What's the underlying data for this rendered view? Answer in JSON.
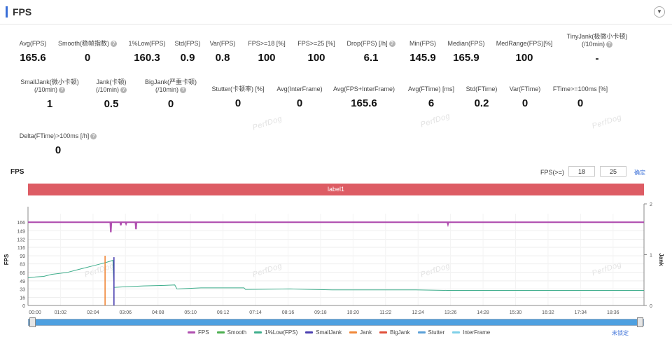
{
  "header": {
    "title": "FPS",
    "collapse_icon": "chevron-down-icon"
  },
  "metrics_row1": [
    {
      "id": "avg-fps",
      "label": "Avg(FPS)",
      "value": "165.6",
      "help": false
    },
    {
      "id": "smooth",
      "label": "Smooth(稳帧指数)",
      "value": "0",
      "help": true
    },
    {
      "id": "low1-fps",
      "label": "1%Low(FPS)",
      "value": "160.3",
      "help": false
    },
    {
      "id": "std-fps",
      "label": "Std(FPS)",
      "value": "0.9",
      "help": false
    },
    {
      "id": "var-fps",
      "label": "Var(FPS)",
      "value": "0.8",
      "help": false
    },
    {
      "id": "fps-ge-18",
      "label": "FPS>=18 [%]",
      "value": "100",
      "help": false
    },
    {
      "id": "fps-ge-25",
      "label": "FPS>=25 [%]",
      "value": "100",
      "help": false
    },
    {
      "id": "drop-fps",
      "label": "Drop(FPS) [/h]",
      "value": "6.1",
      "help": true
    },
    {
      "id": "min-fps",
      "label": "Min(FPS)",
      "value": "145.9",
      "help": false
    },
    {
      "id": "median-fps",
      "label": "Median(FPS)",
      "value": "165.9",
      "help": false
    },
    {
      "id": "medrange-fps",
      "label": "MedRange(FPS)[%]",
      "value": "100",
      "help": false
    },
    {
      "id": "tinyjank",
      "label": "TinyJank(极微小卡顿)",
      "label2": "(/10min)",
      "value": "-",
      "help": true
    }
  ],
  "metrics_row2": [
    {
      "id": "smalljank",
      "label": "SmallJank(微小卡顿)",
      "label2": "(/10min)",
      "value": "1",
      "help": true
    },
    {
      "id": "jank",
      "label": "Jank(卡顿)",
      "label2": "(/10min)",
      "value": "0.5",
      "help": true
    },
    {
      "id": "bigjank",
      "label": "BigJank(严重卡顿)",
      "label2": "(/10min)",
      "value": "0",
      "help": true
    },
    {
      "id": "stutter",
      "label": "Stutter(卡顿率) [%]",
      "value": "0",
      "help": false
    },
    {
      "id": "avg-interframe",
      "label": "Avg(InterFrame)",
      "value": "0",
      "help": false
    },
    {
      "id": "avg-fps-interframe",
      "label": "Avg(FPS+InterFrame)",
      "value": "165.6",
      "help": false
    },
    {
      "id": "avg-ftime",
      "label": "Avg(FTime) [ms]",
      "value": "6",
      "help": false
    },
    {
      "id": "std-ftime",
      "label": "Std(FTime)",
      "value": "0.2",
      "help": false
    },
    {
      "id": "var-ftime",
      "label": "Var(FTime)",
      "value": "0",
      "help": false
    },
    {
      "id": "ftime-ge-100",
      "label": "FTime>=100ms [%]",
      "value": "0",
      "help": false
    }
  ],
  "metrics_row3": [
    {
      "id": "delta-ftime",
      "label": "Delta(FTime)>100ms [/h]",
      "value": "0",
      "help": true
    }
  ],
  "watermark": "PerfDog",
  "chart_section": {
    "title": "FPS",
    "threshold_label": "FPS(>=)",
    "threshold1": "18",
    "threshold2": "25",
    "confirm_label": "确定",
    "label_band": "label1",
    "lock_label": "未锁定"
  },
  "chart_data": {
    "type": "line",
    "ylabel": "FPS",
    "y2label": "Jank",
    "yticks": [
      0,
      16,
      33,
      49,
      66,
      83,
      99,
      116,
      132,
      149,
      166
    ],
    "ylim": [
      0,
      183
    ],
    "y2ticks": [
      0,
      1,
      2
    ],
    "y2lim": [
      0,
      2
    ],
    "xticks": [
      "00:00",
      "01:02",
      "02:04",
      "03:06",
      "04:08",
      "05:10",
      "06:12",
      "07:14",
      "08:16",
      "09:18",
      "10:20",
      "11:22",
      "12:24",
      "13:26",
      "14:28",
      "15:30",
      "16:32",
      "17:34",
      "18:36"
    ],
    "xlim_sec": [
      0,
      1175
    ],
    "series": [
      {
        "name": "FPS",
        "color": "#b04fb0",
        "values_desc": "~166 constant with dips",
        "points": [
          [
            0,
            166
          ],
          [
            157,
            166
          ],
          [
            158,
            146
          ],
          [
            159,
            166
          ],
          [
            176,
            166
          ],
          [
            177,
            160
          ],
          [
            178,
            166
          ],
          [
            186,
            166
          ],
          [
            187,
            163
          ],
          [
            188,
            166
          ],
          [
            205,
            166
          ],
          [
            206,
            152
          ],
          [
            207,
            166
          ],
          [
            800,
            166
          ],
          [
            801,
            162
          ],
          [
            802,
            166
          ],
          [
            1175,
            166
          ]
        ]
      },
      {
        "name": "Smooth",
        "color": "#4caf50",
        "points": []
      },
      {
        "name": "1%Low(FPS)",
        "color": "#3fae8c",
        "points": [
          [
            0,
            55
          ],
          [
            15,
            57
          ],
          [
            30,
            58
          ],
          [
            45,
            62
          ],
          [
            60,
            64
          ],
          [
            75,
            66
          ],
          [
            90,
            70
          ],
          [
            105,
            74
          ],
          [
            120,
            78
          ],
          [
            135,
            82
          ],
          [
            150,
            86
          ],
          [
            162,
            90
          ],
          [
            164,
            36
          ],
          [
            180,
            37
          ],
          [
            220,
            39
          ],
          [
            260,
            40
          ],
          [
            280,
            41
          ],
          [
            284,
            33
          ],
          [
            330,
            35
          ],
          [
            390,
            35
          ],
          [
            412,
            35
          ],
          [
            415,
            32
          ],
          [
            500,
            33
          ],
          [
            540,
            32
          ],
          [
            580,
            31
          ],
          [
            660,
            31
          ],
          [
            740,
            31
          ],
          [
            800,
            30
          ],
          [
            900,
            30
          ],
          [
            1000,
            30
          ],
          [
            1175,
            30
          ]
        ]
      },
      {
        "name": "SmallJank",
        "color": "#4a3fb0",
        "points": [
          [
            164,
            0
          ],
          [
            164,
            0.95
          ]
        ]
      },
      {
        "name": "Jank",
        "color": "#f0883a",
        "points": [
          [
            147,
            0
          ],
          [
            147,
            0.98
          ]
        ]
      },
      {
        "name": "BigJank",
        "color": "#e0503a",
        "points": []
      },
      {
        "name": "Stutter",
        "color": "#5aa0d8",
        "points": []
      },
      {
        "name": "InterFrame",
        "color": "#7fd0e8",
        "points": []
      }
    ]
  }
}
